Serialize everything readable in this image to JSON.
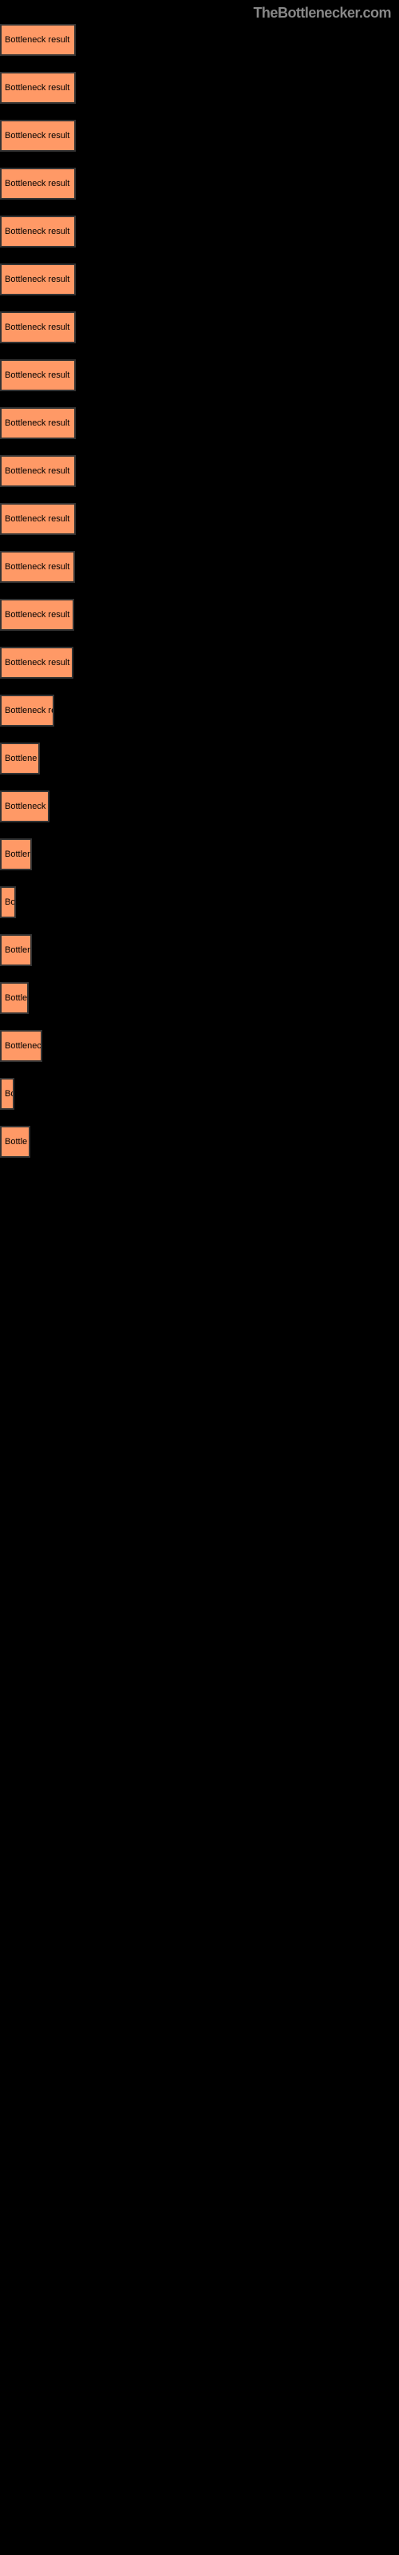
{
  "header": {
    "brand": "TheBottlenecker.com"
  },
  "buttons": [
    {
      "label": "Bottleneck result",
      "width": 95
    },
    {
      "label": "Bottleneck result",
      "width": 95
    },
    {
      "label": "Bottleneck result",
      "width": 95
    },
    {
      "label": "Bottleneck result",
      "width": 95
    },
    {
      "label": "Bottleneck result",
      "width": 95
    },
    {
      "label": "Bottleneck result",
      "width": 95
    },
    {
      "label": "Bottleneck result",
      "width": 95
    },
    {
      "label": "Bottleneck result",
      "width": 95
    },
    {
      "label": "Bottleneck result",
      "width": 95
    },
    {
      "label": "Bottleneck result",
      "width": 95
    },
    {
      "label": "Bottleneck result",
      "width": 95
    },
    {
      "label": "Bottleneck result",
      "width": 94
    },
    {
      "label": "Bottleneck result",
      "width": 93
    },
    {
      "label": "Bottleneck result",
      "width": 92
    },
    {
      "label": "Bottleneck re",
      "width": 68
    },
    {
      "label": "Bottlene",
      "width": 50
    },
    {
      "label": "Bottleneck r",
      "width": 62
    },
    {
      "label": "Bottler",
      "width": 40
    },
    {
      "label": "Bo",
      "width": 20
    },
    {
      "label": "Bottler",
      "width": 40
    },
    {
      "label": "Bottle",
      "width": 36
    },
    {
      "label": "Bottlenec",
      "width": 53
    },
    {
      "label": "Bo",
      "width": 18
    },
    {
      "label": "Bottle",
      "width": 38
    }
  ],
  "styling": {
    "button_bg": "#ff9966",
    "button_border": "#333",
    "body_bg": "#000000",
    "header_color": "#888888",
    "button_font_size": 11,
    "button_spacing": 20
  }
}
